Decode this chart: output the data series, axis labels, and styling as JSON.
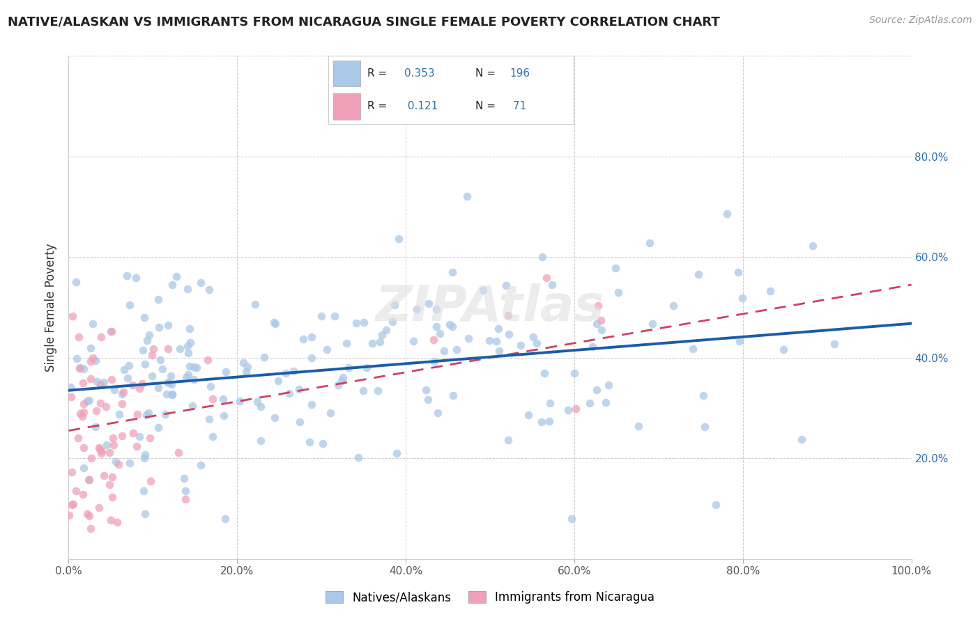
{
  "title": "NATIVE/ALASKAN VS IMMIGRANTS FROM NICARAGUA SINGLE FEMALE POVERTY CORRELATION CHART",
  "source": "Source: ZipAtlas.com",
  "ylabel": "Single Female Poverty",
  "blue_R": 0.353,
  "blue_N": 196,
  "pink_R": 0.121,
  "pink_N": 71,
  "blue_color": "#aac8e8",
  "pink_color": "#f0a0b8",
  "blue_line_color": "#1a5ca8",
  "pink_line_color": "#d04060",
  "background_color": "#ffffff",
  "grid_color": "#cccccc",
  "xlim": [
    0.0,
    1.0
  ],
  "ylim": [
    0.0,
    1.0
  ],
  "xticks": [
    0.0,
    0.2,
    0.4,
    0.6,
    0.8,
    1.0
  ],
  "yticks_right": [
    0.2,
    0.4,
    0.6,
    0.8
  ],
  "xticklabels": [
    "0.0%",
    "20.0%",
    "40.0%",
    "60.0%",
    "80.0%",
    "100.0%"
  ],
  "yticklabels_right": [
    "20.0%",
    "40.0%",
    "60.0%",
    "80.0%"
  ],
  "title_fontsize": 13,
  "axis_label_color": "#3070b0",
  "legend_label_blue": "Natives/Alaskans",
  "legend_label_pink": "Immigrants from Nicaragua",
  "blue_line_start_y": 0.335,
  "blue_line_end_y": 0.468,
  "pink_line_start_y": 0.255,
  "pink_line_end_y": 0.545,
  "watermark": "ZIPAtlas"
}
